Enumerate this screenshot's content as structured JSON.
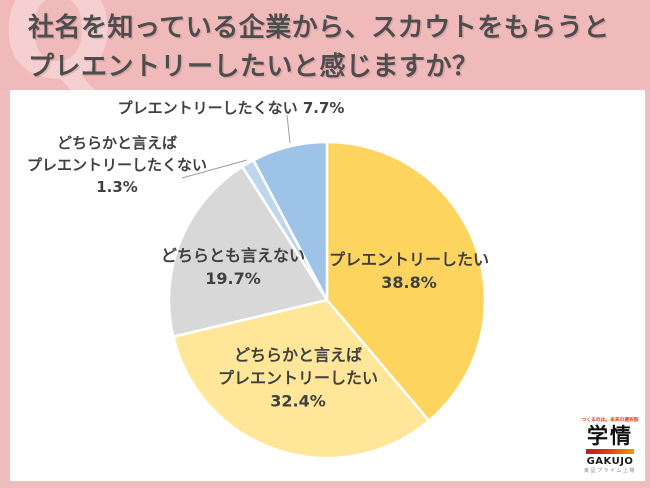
{
  "header": {
    "watermark": "Q",
    "title_line1": "社名を知っている企業から、スカウトをもらうと",
    "title_line2": "プレエントリーしたいと感じますか？"
  },
  "chart_data": {
    "type": "pie",
    "title": "社名を知っている企業から、スカウトをもらうとプレエントリーしたいと感じますか？",
    "start_angle_deg": -90,
    "direction": "clockwise",
    "slices": [
      {
        "label": "プレエントリーしたい",
        "value": 38.8,
        "pct": "38.8%",
        "color": "#FCD45E",
        "label_position": "inside"
      },
      {
        "label": "どちらかと言えばプレエントリーしたい",
        "label_lines": [
          "どちらかと言えば",
          "プレエントリーしたい"
        ],
        "value": 32.4,
        "pct": "32.4%",
        "color": "#FFE699",
        "label_position": "inside"
      },
      {
        "label": "どちらとも言えない",
        "value": 19.7,
        "pct": "19.7%",
        "color": "#D8D8D8",
        "label_position": "inside"
      },
      {
        "label": "どちらかと言えばプレエントリーしたくない",
        "label_lines": [
          "どちらかと言えば",
          "プレエントリーしたくない"
        ],
        "value": 1.3,
        "pct": "1.3%",
        "color": "#BDD7EE",
        "label_position": "outside-left"
      },
      {
        "label": "プレエントリーしたくない",
        "value": 7.7,
        "pct": "7.7%",
        "color": "#9DC3E6",
        "label_position": "outside-top"
      }
    ]
  },
  "logo": {
    "slogan": "つくるのは。未来の選択肢",
    "name_jp": "学情",
    "name_en": "GAKUJO",
    "listing": "東証プライム上場",
    "bar_color_left": "#B81C22",
    "bar_color_right": "#F39800"
  }
}
